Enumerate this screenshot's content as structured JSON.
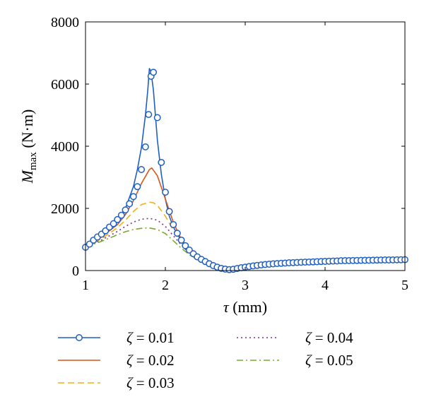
{
  "chart_data": {
    "type": "line",
    "ylabel": {
      "main": "M",
      "sub": "max",
      "unit": " (N·m)"
    },
    "xlabel": {
      "main": "τ",
      "unit": " (mm)"
    },
    "xlim": [
      1,
      5
    ],
    "ylim": [
      0,
      8000
    ],
    "x_ticks": [
      "1",
      "2",
      "3",
      "4",
      "5"
    ],
    "y_ticks": [
      "0",
      "2000",
      "4000",
      "6000",
      "8000"
    ],
    "grid": false,
    "legend_position": "bottom",
    "series": [
      {
        "name": "ζ = 0.01",
        "color": "#1f5fc4",
        "style": "solid-circle",
        "points": [
          [
            1.0,
            750
          ],
          [
            1.2,
            1150
          ],
          [
            1.4,
            1650
          ],
          [
            1.5,
            2000
          ],
          [
            1.6,
            2700
          ],
          [
            1.65,
            3250
          ],
          [
            1.7,
            3950
          ],
          [
            1.75,
            5000
          ],
          [
            1.78,
            5800
          ],
          [
            1.8,
            6500
          ],
          [
            1.82,
            6400
          ],
          [
            1.85,
            5800
          ],
          [
            1.9,
            4200
          ],
          [
            1.95,
            3100
          ],
          [
            2.0,
            2300
          ],
          [
            2.05,
            1750
          ],
          [
            2.1,
            1400
          ],
          [
            2.2,
            950
          ],
          [
            2.3,
            650
          ],
          [
            2.4,
            450
          ],
          [
            2.5,
            300
          ],
          [
            2.6,
            180
          ],
          [
            2.7,
            90
          ],
          [
            2.8,
            40
          ],
          [
            2.9,
            60
          ],
          [
            3.0,
            110
          ],
          [
            3.2,
            170
          ],
          [
            3.5,
            230
          ],
          [
            4.0,
            280
          ],
          [
            4.5,
            320
          ],
          [
            5.0,
            340
          ]
        ],
        "markers_x": [
          1.0,
          1.05,
          1.1,
          1.15,
          1.2,
          1.25,
          1.3,
          1.35,
          1.4,
          1.45,
          1.5,
          1.55,
          1.6,
          1.65,
          1.7,
          1.75,
          1.79,
          1.82,
          1.85,
          1.9,
          1.95,
          2.0,
          2.05,
          2.1,
          2.15,
          2.2,
          2.25,
          2.3,
          2.35,
          2.4,
          2.45,
          2.5,
          2.55,
          2.6,
          2.65,
          2.7,
          2.75,
          2.8,
          2.85,
          2.9,
          2.95,
          3.0,
          3.05,
          3.1,
          3.15,
          3.2,
          3.25,
          3.3,
          3.35,
          3.4,
          3.45,
          3.5,
          3.55,
          3.6,
          3.65,
          3.7,
          3.75,
          3.8,
          3.85,
          3.9,
          3.95,
          4.0,
          4.05,
          4.1,
          4.15,
          4.2,
          4.25,
          4.3,
          4.35,
          4.4,
          4.45,
          4.5,
          4.55,
          4.6,
          4.65,
          4.7,
          4.75,
          4.8,
          4.85,
          4.9,
          4.95,
          5.0
        ],
        "markers_y": [
          750,
          850,
          980,
          1080,
          1170,
          1280,
          1400,
          1510,
          1640,
          1780,
          1950,
          2150,
          2380,
          2700,
          3250,
          3980,
          5020,
          6250,
          6380,
          4920,
          3480,
          2520,
          1900,
          1480,
          1200,
          980,
          800,
          660,
          540,
          440,
          360,
          290,
          220,
          160,
          110,
          70,
          45,
          30,
          40,
          65,
          90,
          110,
          130,
          150,
          165,
          180,
          195,
          205,
          215,
          225,
          235,
          240,
          250,
          255,
          260,
          265,
          270,
          275,
          280,
          285,
          290,
          295,
          300,
          305,
          310,
          315,
          318,
          320,
          322,
          325,
          328,
          330,
          332,
          334,
          336,
          338,
          340,
          342,
          344,
          346,
          348,
          350
        ]
      },
      {
        "name": "ζ = 0.02",
        "color": "#d9541a",
        "style": "solid",
        "points": [
          [
            1.0,
            760
          ],
          [
            1.2,
            1080
          ],
          [
            1.4,
            1480
          ],
          [
            1.5,
            1800
          ],
          [
            1.6,
            2250
          ],
          [
            1.7,
            2800
          ],
          [
            1.8,
            3250
          ],
          [
            1.83,
            3300
          ],
          [
            1.9,
            3050
          ],
          [
            2.0,
            2300
          ],
          [
            2.1,
            1550
          ],
          [
            2.2,
            1000
          ],
          [
            2.3,
            650
          ],
          [
            2.4,
            430
          ],
          [
            2.5,
            280
          ],
          [
            2.6,
            170
          ],
          [
            2.7,
            90
          ],
          [
            2.8,
            40
          ],
          [
            2.9,
            60
          ],
          [
            3.0,
            100
          ],
          [
            3.2,
            160
          ],
          [
            3.5,
            220
          ],
          [
            4.0,
            270
          ],
          [
            4.5,
            300
          ],
          [
            5.0,
            320
          ]
        ]
      },
      {
        "name": "ζ = 0.03",
        "color": "#edb120",
        "style": "dashed",
        "points": [
          [
            1.0,
            760
          ],
          [
            1.2,
            1020
          ],
          [
            1.4,
            1380
          ],
          [
            1.5,
            1620
          ],
          [
            1.6,
            1900
          ],
          [
            1.7,
            2120
          ],
          [
            1.8,
            2200
          ],
          [
            1.85,
            2180
          ],
          [
            1.9,
            2100
          ],
          [
            2.0,
            1750
          ],
          [
            2.1,
            1300
          ],
          [
            2.2,
            900
          ],
          [
            2.3,
            600
          ],
          [
            2.4,
            400
          ],
          [
            2.5,
            260
          ],
          [
            2.6,
            160
          ],
          [
            2.7,
            90
          ],
          [
            2.8,
            45
          ],
          [
            2.9,
            60
          ],
          [
            3.0,
            95
          ],
          [
            3.2,
            150
          ],
          [
            3.5,
            210
          ],
          [
            4.0,
            260
          ],
          [
            4.5,
            290
          ],
          [
            5.0,
            310
          ]
        ]
      },
      {
        "name": "ζ = 0.04",
        "color": "#7e2f8e",
        "style": "dotted",
        "points": [
          [
            1.0,
            760
          ],
          [
            1.2,
            980
          ],
          [
            1.4,
            1260
          ],
          [
            1.5,
            1420
          ],
          [
            1.6,
            1560
          ],
          [
            1.7,
            1650
          ],
          [
            1.8,
            1680
          ],
          [
            1.9,
            1620
          ],
          [
            2.0,
            1420
          ],
          [
            2.1,
            1120
          ],
          [
            2.2,
            820
          ],
          [
            2.3,
            560
          ],
          [
            2.4,
            380
          ],
          [
            2.5,
            250
          ],
          [
            2.6,
            150
          ],
          [
            2.7,
            85
          ],
          [
            2.8,
            45
          ],
          [
            2.9,
            55
          ],
          [
            3.0,
            90
          ],
          [
            3.2,
            140
          ],
          [
            3.5,
            200
          ],
          [
            4.0,
            250
          ],
          [
            4.5,
            280
          ],
          [
            5.0,
            300
          ]
        ]
      },
      {
        "name": "ζ = 0.05",
        "color": "#77ac30",
        "style": "dashdot",
        "points": [
          [
            1.0,
            760
          ],
          [
            1.2,
            940
          ],
          [
            1.4,
            1150
          ],
          [
            1.5,
            1250
          ],
          [
            1.6,
            1320
          ],
          [
            1.7,
            1360
          ],
          [
            1.8,
            1370
          ],
          [
            1.9,
            1320
          ],
          [
            2.0,
            1190
          ],
          [
            2.1,
            960
          ],
          [
            2.2,
            720
          ],
          [
            2.3,
            510
          ],
          [
            2.4,
            350
          ],
          [
            2.5,
            230
          ],
          [
            2.6,
            140
          ],
          [
            2.7,
            80
          ],
          [
            2.8,
            45
          ],
          [
            2.9,
            55
          ],
          [
            3.0,
            85
          ],
          [
            3.2,
            135
          ],
          [
            3.5,
            190
          ],
          [
            4.0,
            240
          ],
          [
            4.5,
            270
          ],
          [
            5.0,
            290
          ]
        ]
      }
    ]
  }
}
